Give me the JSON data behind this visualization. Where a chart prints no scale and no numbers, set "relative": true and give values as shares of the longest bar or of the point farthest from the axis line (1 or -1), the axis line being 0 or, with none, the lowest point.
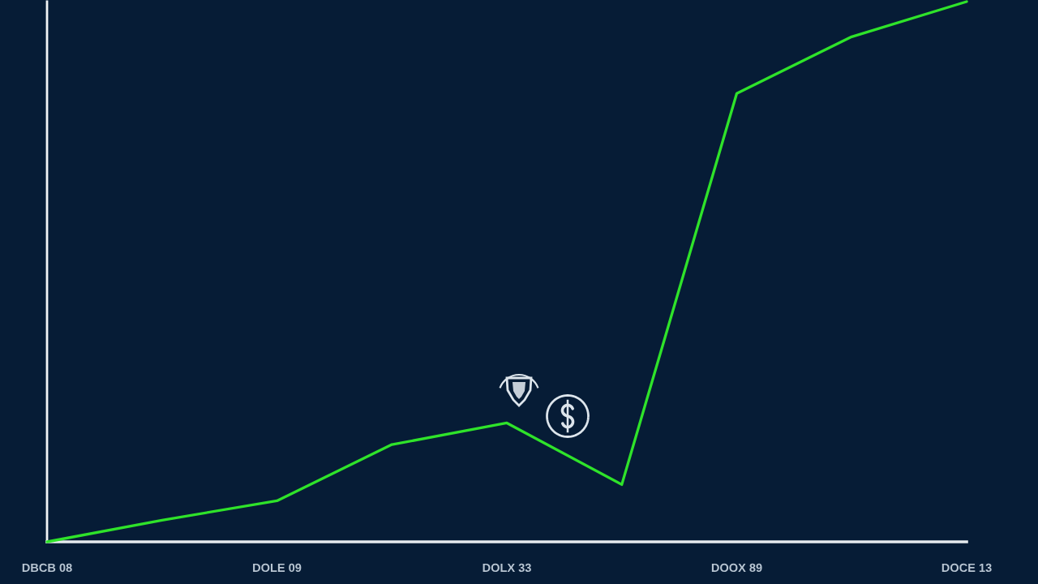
{
  "chart_data": {
    "type": "line",
    "relative": true,
    "categories": [
      "DBCB 08",
      null,
      "DOLE 09",
      null,
      "DOLX 33",
      null,
      "DOOX 89",
      null,
      "DOCE 13"
    ],
    "series": [
      {
        "color": "#2fe32a",
        "values": [
          0,
          0.04,
          0.076,
          0.18,
          0.22,
          0.106,
          0.83,
          0.935,
          1
        ]
      }
    ],
    "line_style": "solid"
  }
}
